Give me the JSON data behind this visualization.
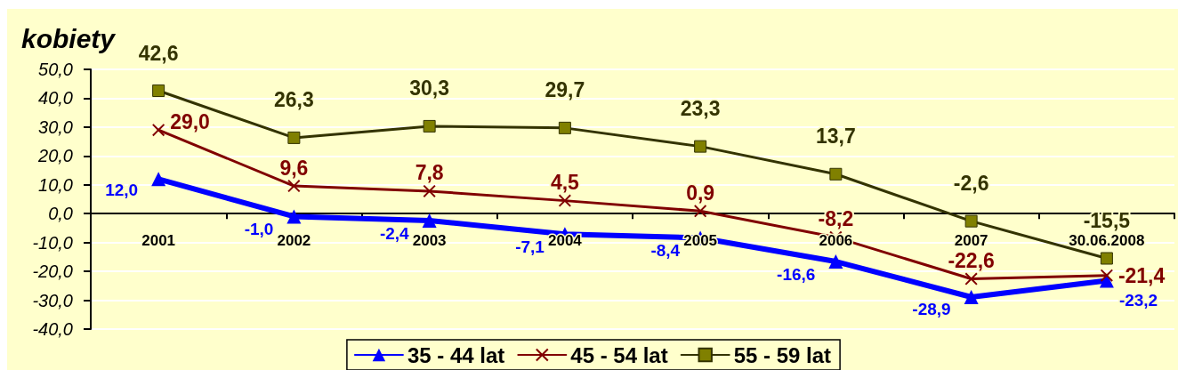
{
  "chart_data": {
    "type": "line",
    "title": "kobiety",
    "categories": [
      "2001",
      "2002",
      "2003",
      "2004",
      "2005",
      "2006",
      "2007",
      "30.06.2008"
    ],
    "series": [
      {
        "name": "35 - 44 lat",
        "color": "#0000ff",
        "marker": "triangle",
        "values": [
          12.0,
          -1.0,
          -2.4,
          -7.1,
          -8.4,
          -16.6,
          -28.9,
          -23.2
        ],
        "value_labels": [
          "12,0",
          "-1,0",
          "-2,4",
          "-7,1",
          "-8,4",
          "-16,6",
          "-28,9",
          "-23,2"
        ]
      },
      {
        "name": "45 - 54 lat",
        "color": "#800000",
        "marker": "cross",
        "values": [
          29.0,
          9.6,
          7.8,
          4.5,
          0.9,
          -8.2,
          -22.6,
          -21.4
        ],
        "value_labels": [
          "29,0",
          "9,6",
          "7,8",
          "4,5",
          "0,9",
          "-8,2",
          "-22,6",
          "-21,4"
        ]
      },
      {
        "name": "55 - 59 lat",
        "color": "#333300",
        "marker": "square",
        "values": [
          42.6,
          26.3,
          30.3,
          29.7,
          23.3,
          13.7,
          -2.6,
          -15.5
        ],
        "value_labels": [
          "42,6",
          "26,3",
          "30,3",
          "29,7",
          "23,3",
          "13,7",
          "-2,6",
          "-15,5"
        ]
      }
    ],
    "ylim": [
      -40,
      50
    ],
    "yticks": [
      {
        "value": -40,
        "label": "-40,0"
      },
      {
        "value": -30,
        "label": "-30,0"
      },
      {
        "value": -20,
        "label": "-20,0"
      },
      {
        "value": -10,
        "label": "-10,0"
      },
      {
        "value": 0,
        "label": "0,0"
      },
      {
        "value": 10,
        "label": "10,0"
      },
      {
        "value": 20,
        "label": "20,0"
      },
      {
        "value": 30,
        "label": "30,0"
      },
      {
        "value": 40,
        "label": "40,0"
      },
      {
        "value": 50,
        "label": "50,0"
      }
    ],
    "grid": "y",
    "legend": "bottom"
  }
}
